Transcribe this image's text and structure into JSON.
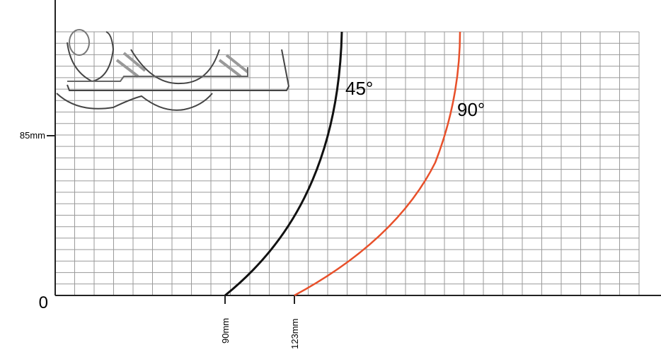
{
  "axes": {
    "y_label": "85mm",
    "origin": "0",
    "x_label_1": "90mm",
    "x_label_2": "123mm"
  },
  "curves": {
    "black": "45°",
    "orange": "90°"
  }
}
